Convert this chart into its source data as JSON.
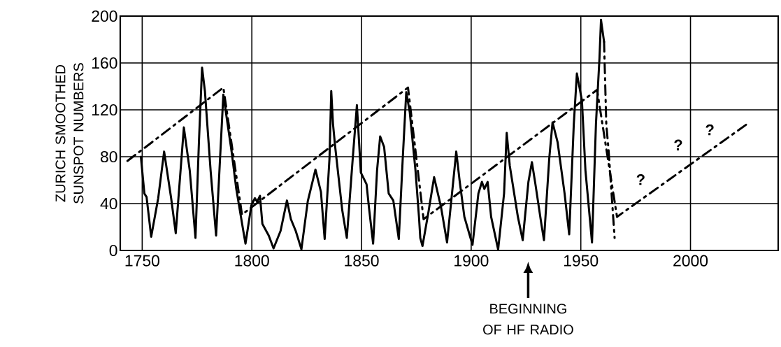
{
  "chart_data": {
    "type": "line",
    "ylabel": "ZURICH SMOOTHED SUNSPOT NUMBERS",
    "xlim": [
      1740,
      2040
    ],
    "ylim": [
      0,
      200
    ],
    "xticks": [
      1750,
      1800,
      1850,
      1900,
      1950,
      2000
    ],
    "yticks": [
      0,
      40,
      80,
      120,
      160,
      200
    ],
    "grid": true,
    "marker": "none",
    "series": [
      {
        "color": "#000000",
        "line_style": "solid",
        "x": [
          1749.4,
          1751.0,
          1752.0,
          1754.1,
          1757.3,
          1760.0,
          1763.2,
          1765.3,
          1769.0,
          1771.7,
          1774.3,
          1775.9,
          1777.3,
          1778.6,
          1781.2,
          1783.7,
          1787.0,
          1790.8,
          1792.9,
          1796.1,
          1797.1,
          1799.8,
          1801.4,
          1802.4,
          1803.7,
          1804.8,
          1807.7,
          1809.9,
          1813.1,
          1816.0,
          1817.8,
          1820.0,
          1822.6,
          1825.5,
          1829.0,
          1831.5,
          1833.2,
          1835.4,
          1836.2,
          1837.0,
          1838.0,
          1841.2,
          1843.3,
          1846.0,
          1847.9,
          1849.7,
          1852.3,
          1853.4,
          1855.3,
          1857.1,
          1858.5,
          1860.3,
          1862.4,
          1864.5,
          1867.0,
          1868.8,
          1870.4,
          1872.0,
          1874.6,
          1876.2,
          1876.8,
          1877.8,
          1880.5,
          1883.1,
          1886.3,
          1889.0,
          1893.2,
          1894.8,
          1896.9,
          1900.6,
          1903.3,
          1904.9,
          1906.0,
          1907.5,
          1909.1,
          1912.3,
          1915.0,
          1916.2,
          1917.6,
          1921.3,
          1923.5,
          1926.1,
          1927.7,
          1929.3,
          1932.0,
          1933.2,
          1935.6,
          1937.1,
          1939.4,
          1942.6,
          1944.7,
          1946.8,
          1948.2,
          1950.5,
          1952.1,
          1955.1,
          1956.9,
          1958.5,
          1959.2,
          1960.6
        ],
        "values": [
          80,
          48.6,
          45.6,
          11.7,
          44.6,
          84.4,
          44.6,
          14.7,
          105,
          68,
          10.7,
          94,
          156,
          136,
          68,
          12.7,
          133,
          84,
          52.5,
          16.7,
          5.8,
          38.6,
          44.6,
          41.6,
          46.6,
          22.7,
          12.7,
          1.8,
          16.7,
          42.6,
          26.7,
          16.7,
          1,
          42,
          69,
          50,
          9.8,
          78.4,
          136,
          108,
          88.4,
          34.6,
          10.7,
          78.4,
          124,
          66.5,
          56.5,
          36.6,
          5.8,
          68.5,
          97.3,
          88.4,
          48.6,
          42.6,
          9.8,
          78.4,
          135,
          118,
          68.5,
          28.7,
          10.7,
          3.8,
          32.6,
          62.5,
          36.6,
          6.8,
          84.4,
          58.5,
          28.7,
          4.8,
          48.6,
          58.5,
          52.5,
          58.5,
          28.7,
          0.8,
          48.6,
          100.3,
          72.4,
          28.7,
          8.8,
          58.5,
          75.4,
          56.5,
          22.7,
          8.8,
          78.4,
          109.3,
          92.5,
          48.6,
          13.7,
          108,
          151,
          128,
          68.5,
          6.8,
          108,
          164,
          196.8,
          178
        ]
      },
      {
        "color": "#000000",
        "line_style": "dashed",
        "x": [
          1960.6,
          1961.6,
          1962.7,
          1963.8,
          1965.4
        ],
        "values": [
          178,
          108,
          84.4,
          54.5,
          10.7
        ]
      },
      {
        "color": "#000000",
        "line_style": "dashed",
        "x": [
          1743.3,
          1787.0,
          1795.5,
          1871.2,
          1878.3,
          1957.4,
          1966.5,
          2025.9
        ],
        "values": [
          76.4,
          139,
          30.6,
          139,
          26.7,
          137,
          28.7,
          108
        ]
      }
    ],
    "annotations": [
      "?",
      "?",
      "?",
      "BEGINNING OF HF RADIO"
    ]
  }
}
